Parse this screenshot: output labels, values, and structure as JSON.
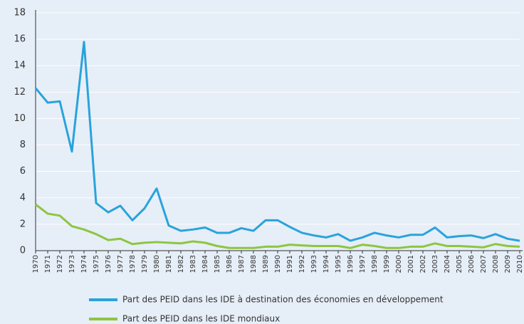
{
  "chart_data": {
    "type": "line",
    "categories": [
      "1970",
      "1971",
      "1972",
      "1973",
      "1974",
      "1975",
      "1976",
      "1977",
      "1978",
      "1979",
      "1980",
      "1981",
      "1982",
      "1983",
      "1984",
      "1985",
      "1986",
      "1987",
      "1988",
      "1989",
      "1990",
      "1991",
      "1992",
      "1993",
      "1994",
      "1995",
      "1996",
      "1997",
      "1998",
      "1999",
      "2000",
      "2001",
      "2002",
      "2003",
      "2004",
      "2005",
      "2006",
      "2007",
      "2008",
      "2009",
      "2010"
    ],
    "series": [
      {
        "name": "Part des PEID dans les IDE à destination des économies en développement",
        "color": "#29a3dc",
        "values": [
          12.3,
          11.2,
          11.3,
          7.5,
          15.8,
          3.6,
          2.9,
          3.4,
          2.3,
          3.2,
          4.7,
          1.9,
          1.5,
          1.6,
          1.75,
          1.35,
          1.35,
          1.7,
          1.5,
          2.3,
          2.3,
          1.8,
          1.35,
          1.15,
          1.0,
          1.25,
          0.75,
          1.0,
          1.35,
          1.15,
          1.0,
          1.2,
          1.2,
          1.75,
          1.0,
          1.1,
          1.15,
          0.95,
          1.25,
          0.9,
          0.75
        ]
      },
      {
        "name": "Part des PEID dans les IDE mondiaux",
        "color": "#8dc63f",
        "values": [
          3.5,
          2.8,
          2.65,
          1.85,
          1.6,
          1.25,
          0.8,
          0.9,
          0.5,
          0.6,
          0.65,
          0.6,
          0.55,
          0.7,
          0.6,
          0.35,
          0.2,
          0.2,
          0.2,
          0.3,
          0.3,
          0.45,
          0.4,
          0.35,
          0.35,
          0.35,
          0.2,
          0.45,
          0.35,
          0.2,
          0.2,
          0.3,
          0.3,
          0.55,
          0.35,
          0.35,
          0.3,
          0.25,
          0.5,
          0.35,
          0.3
        ]
      }
    ],
    "ylim": [
      0,
      18
    ],
    "yticks": [
      0,
      2,
      4,
      6,
      8,
      10,
      12,
      14,
      16,
      18
    ],
    "grid": true
  }
}
